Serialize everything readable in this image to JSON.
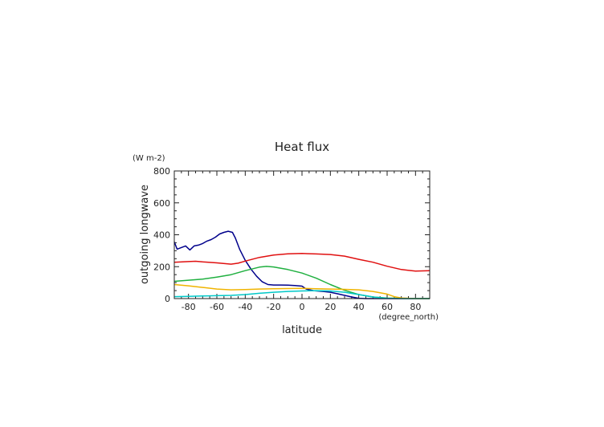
{
  "chart_data": {
    "type": "line",
    "title": "Heat flux",
    "ylabel": "outgoing longwave",
    "yunit": "(W m-2)",
    "xlabel": "latitude",
    "xunit": "(degree_north)",
    "xlim": [
      -90,
      90
    ],
    "ylim": [
      0,
      800
    ],
    "xticks": [
      -80,
      -60,
      -40,
      -20,
      0,
      20,
      40,
      60,
      80
    ],
    "yticks": [
      0,
      200,
      400,
      600,
      800
    ],
    "grid": false,
    "series": [
      {
        "color": "#00008b",
        "x": [
          -90,
          -88,
          -85,
          -82,
          -79,
          -76,
          -73,
          -70,
          -67,
          -64,
          -61,
          -58,
          -55,
          -52,
          -49,
          -47,
          -44,
          -40,
          -36,
          -32,
          -28,
          -24,
          -20,
          -15,
          -10,
          -5,
          0,
          3,
          8,
          15,
          20,
          25,
          30,
          35,
          40,
          45,
          50,
          60,
          70,
          80,
          90
        ],
        "y": [
          355,
          310,
          320,
          330,
          305,
          330,
          335,
          345,
          360,
          370,
          385,
          405,
          415,
          422,
          415,
          380,
          310,
          240,
          185,
          140,
          105,
          88,
          85,
          85,
          84,
          82,
          78,
          60,
          50,
          45,
          40,
          30,
          20,
          10,
          2,
          0,
          0,
          0,
          0,
          0,
          0
        ]
      },
      {
        "color": "#e01010",
        "x": [
          -90,
          -80,
          -75,
          -70,
          -60,
          -50,
          -45,
          -40,
          -30,
          -20,
          -10,
          0,
          10,
          20,
          30,
          40,
          50,
          60,
          70,
          80,
          90
        ],
        "y": [
          228,
          232,
          234,
          230,
          224,
          216,
          222,
          235,
          258,
          273,
          281,
          283,
          280,
          276,
          266,
          246,
          228,
          203,
          182,
          172,
          175
        ]
      },
      {
        "color": "#20b040",
        "x": [
          -90,
          -80,
          -70,
          -60,
          -50,
          -40,
          -30,
          -25,
          -20,
          -10,
          0,
          10,
          20,
          30,
          40,
          50,
          60,
          70,
          80,
          90
        ],
        "y": [
          108,
          115,
          122,
          135,
          150,
          175,
          197,
          202,
          198,
          182,
          160,
          128,
          88,
          52,
          25,
          10,
          3,
          1,
          0,
          0
        ]
      },
      {
        "color": "#f0b400",
        "x": [
          -90,
          -80,
          -70,
          -60,
          -50,
          -40,
          -30,
          -20,
          -10,
          0,
          10,
          20,
          30,
          40,
          50,
          60,
          65,
          70,
          80,
          90
        ],
        "y": [
          88,
          80,
          70,
          60,
          55,
          57,
          60,
          62,
          63,
          64,
          62,
          60,
          58,
          55,
          45,
          28,
          12,
          4,
          0,
          0
        ]
      },
      {
        "color": "#00c8c8",
        "x": [
          -90,
          -80,
          -70,
          -60,
          -50,
          -40,
          -30,
          -20,
          -10,
          0,
          10,
          20,
          30,
          40,
          50,
          60,
          70,
          80,
          90
        ],
        "y": [
          12,
          14,
          16,
          18,
          20,
          25,
          33,
          40,
          45,
          48,
          50,
          48,
          40,
          25,
          10,
          2,
          0,
          0,
          0
        ]
      }
    ]
  }
}
